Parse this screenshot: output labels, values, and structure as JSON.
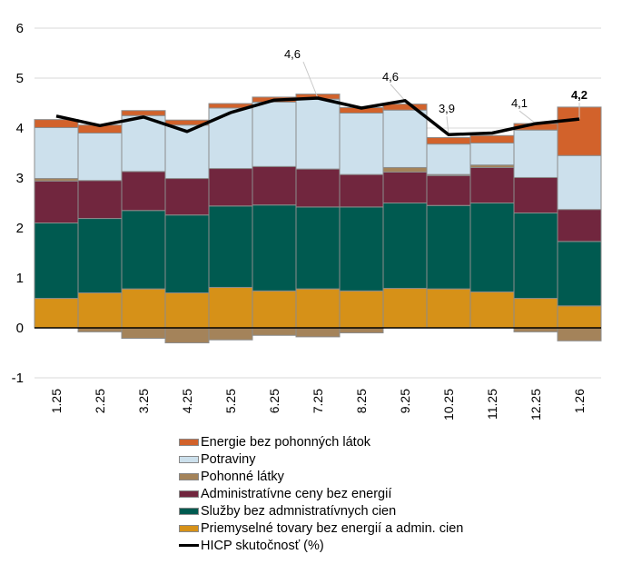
{
  "chart_data": {
    "type": "bar",
    "stacked": true,
    "title": "",
    "xlabel": "",
    "ylabel": "",
    "ylim": [
      -1,
      6
    ],
    "yticks": [
      "6",
      "5",
      "4",
      "3",
      "2",
      "1",
      "0",
      "-1"
    ],
    "ytick_values": [
      6,
      5,
      4,
      3,
      2,
      1,
      0,
      -1
    ],
    "grid": true,
    "legend_position": "bottom",
    "categories": [
      "1.25",
      "2.25",
      "3.25",
      "4.25",
      "5.25",
      "6.25",
      "7.25",
      "8.25",
      "9.25",
      "10.25",
      "11.25",
      "12.25",
      "1.26"
    ],
    "series": [
      {
        "name": "Priemyselné tovary bez energií a admin. cien",
        "color": "#D69118",
        "values": [
          0.59,
          0.7,
          0.78,
          0.7,
          0.81,
          0.74,
          0.78,
          0.74,
          0.79,
          0.78,
          0.72,
          0.59,
          0.44
        ]
      },
      {
        "name": "Služby bez admnistratívnych cien",
        "color": "#005A50",
        "values": [
          1.51,
          1.49,
          1.57,
          1.56,
          1.63,
          1.72,
          1.64,
          1.68,
          1.71,
          1.67,
          1.78,
          1.71,
          1.29
        ]
      },
      {
        "name": "Administratívne ceny bez energií",
        "color": "#71263E",
        "values": [
          0.84,
          0.76,
          0.78,
          0.73,
          0.75,
          0.77,
          0.76,
          0.65,
          0.62,
          0.6,
          0.71,
          0.71,
          0.64
        ]
      },
      {
        "name": "Pohonné látky",
        "color": "#A4835A",
        "values": [
          0.05,
          -0.08,
          -0.21,
          -0.3,
          -0.24,
          -0.15,
          -0.18,
          -0.1,
          0.09,
          0.02,
          0.05,
          -0.08,
          -0.26
        ]
      },
      {
        "name": "Potraviny",
        "color": "#CCE0EC",
        "values": [
          1.02,
          0.95,
          1.12,
          1.07,
          1.21,
          1.29,
          1.4,
          1.23,
          1.15,
          0.61,
          0.44,
          0.95,
          1.08
        ]
      },
      {
        "name": "Energie bez pohonných látok",
        "color": "#D2622B",
        "values": [
          0.16,
          0.16,
          0.1,
          0.1,
          0.09,
          0.1,
          0.1,
          0.11,
          0.12,
          0.13,
          0.15,
          0.13,
          0.97
        ]
      }
    ],
    "line_series": {
      "name": "HICP skutočnosť (%)",
      "color": "#000000",
      "values": [
        4.24,
        4.05,
        4.22,
        3.93,
        4.31,
        4.56,
        4.6,
        4.4,
        4.55,
        3.87,
        3.9,
        4.09,
        4.18
      ]
    },
    "annotations": [
      {
        "category": "7.25",
        "text": "4,6",
        "bold": false
      },
      {
        "category": "9.25",
        "text": "4,6",
        "bold": false
      },
      {
        "category": "10.25",
        "text": "3,9",
        "bold": false
      },
      {
        "category": "12.25",
        "text": "4,1",
        "bold": false
      },
      {
        "category": "1.26",
        "text": "4,2",
        "bold": true
      }
    ],
    "legend": [
      {
        "label": "Energie bez pohonných látok",
        "color": "#D2622B",
        "kind": "box"
      },
      {
        "label": "Potraviny",
        "color": "#CCE0EC",
        "kind": "box"
      },
      {
        "label": "Pohonné látky",
        "color": "#A4835A",
        "kind": "box"
      },
      {
        "label": "Administratívne ceny bez energií",
        "color": "#71263E",
        "kind": "box"
      },
      {
        "label": "Služby bez admnistratívnych cien",
        "color": "#005A50",
        "kind": "box"
      },
      {
        "label": "Priemyselné tovary bez energií a admin. cien",
        "color": "#D69118",
        "kind": "box"
      },
      {
        "label": "HICP skutočnosť (%)",
        "color": "#000000",
        "kind": "line"
      }
    ]
  }
}
